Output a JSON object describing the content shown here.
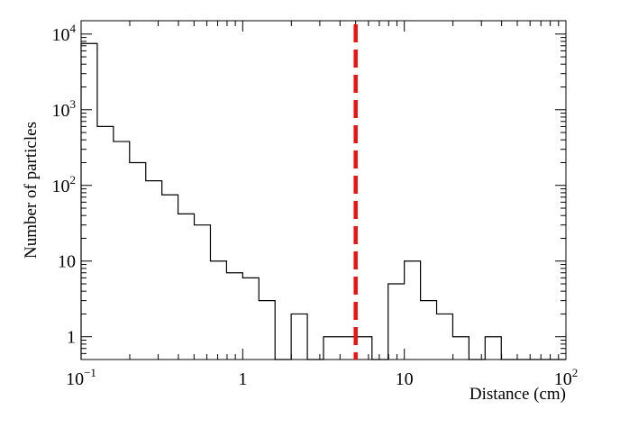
{
  "chart_data": {
    "type": "histogram",
    "xlabel": "Distance (cm)",
    "ylabel": "Number of particles",
    "x_scale": "log",
    "y_scale": "log",
    "xlim": [
      0.1,
      100
    ],
    "ylim": [
      0.5,
      15000
    ],
    "x_ticks": [
      {
        "value": 0.1,
        "base": "10",
        "exp": "−1"
      },
      {
        "value": 1,
        "label": "1"
      },
      {
        "value": 10,
        "label": "10"
      },
      {
        "value": 100,
        "base": "10",
        "exp": "2"
      }
    ],
    "y_ticks": [
      {
        "value": 1,
        "label": "1"
      },
      {
        "value": 10,
        "label": "10"
      },
      {
        "value": 100,
        "base": "10",
        "exp": "2"
      },
      {
        "value": 1000,
        "base": "10",
        "exp": "3"
      },
      {
        "value": 10000,
        "base": "10",
        "exp": "4"
      }
    ],
    "bin_edges": [
      0.1,
      0.1259,
      0.1585,
      0.1995,
      0.2512,
      0.3162,
      0.3981,
      0.5012,
      0.631,
      0.7943,
      1.0,
      1.259,
      1.585,
      1.995,
      2.512,
      3.162,
      3.981,
      5.012,
      6.31,
      7.943,
      10.0,
      12.59,
      15.85,
      19.95,
      25.12,
      31.62,
      39.81,
      50.12,
      63.1,
      79.43,
      100.0
    ],
    "counts": [
      7500,
      600,
      380,
      200,
      115,
      75,
      42,
      30,
      10,
      7,
      6,
      3,
      0,
      2,
      0,
      1,
      1,
      1,
      0,
      5,
      10,
      3,
      2,
      1,
      0,
      1,
      0,
      0,
      0,
      0
    ],
    "cut_line": {
      "x": 5.0,
      "color": "#ee1111",
      "style": "dashed"
    },
    "grid": false
  }
}
